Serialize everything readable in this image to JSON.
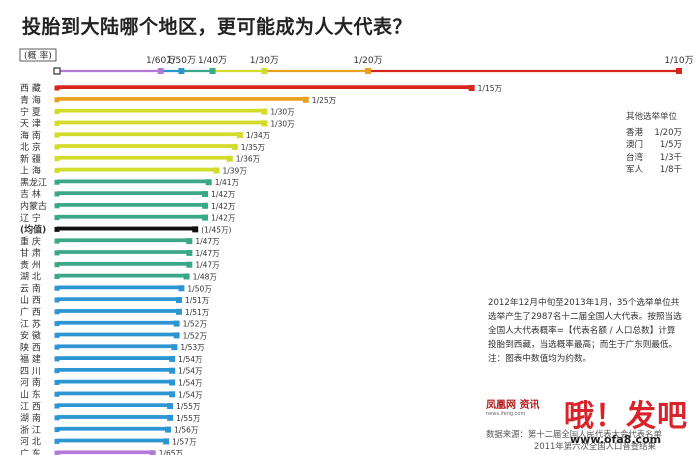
{
  "title": "投胎到大陆哪个地区，更可能成为人大代表？",
  "axis_box_label": "(概 率)",
  "side_legend": {
    "title": "其他选举单位",
    "items": [
      {
        "name": "香港",
        "value": "1/20万"
      },
      {
        "name": "澳门",
        "value": "1/5万"
      },
      {
        "name": "台湾",
        "value": "1/3千"
      },
      {
        "name": "军人",
        "value": "1/8千"
      }
    ]
  },
  "note_lines": [
    "2012年12月中旬至2013年1月，35个选举单位共",
    "选举产生了2987名十二届全国人大代表。按照当选",
    "全国人大代表概率=【代表名额 / 人口总数】计算",
    "投胎到西藏，当选概率最高；而生于广东则最低。",
    "注：图表中数值均为约数。"
  ],
  "logo": {
    "text": "凤凰网 资讯",
    "sub": "news.ifeng.com"
  },
  "source_lines": [
    "数据来源：第十二届全国人民代表大会代表名单",
    "2011年第六次全国人口普查结果"
  ],
  "watermark": {
    "text": "哦！发吧",
    "url": "www.ofa8.com"
  },
  "colors": {
    "red": "#d7261e",
    "orange": "#e9a21f",
    "yellow": "#d3db2b",
    "green": "#3aa887",
    "blue": "#2e95d3",
    "purple": "#b478d6",
    "black": "#111111"
  },
  "chart_data": {
    "type": "bar",
    "orientation": "horizontal",
    "title": "投胎到大陆哪个地区，更可能成为人大代表？",
    "xlabel": "概率",
    "x_unit": "1 / N万",
    "x_scale": "reciprocal: position ∝ 1/N",
    "xlim_denominator_wan": [
      10,
      1000
    ],
    "ticks": [
      {
        "label": "1/60万",
        "denom": 60
      },
      {
        "label": "1/50万",
        "denom": 50
      },
      {
        "label": "1/40万",
        "denom": 40
      },
      {
        "label": "1/30万",
        "denom": 30
      },
      {
        "label": "1/20万",
        "denom": 20
      },
      {
        "label": "1/10万",
        "denom": 10
      }
    ],
    "rows": [
      {
        "region": "西 藏",
        "denom": 15,
        "label": "1/15万",
        "color": "#d7261e"
      },
      {
        "region": "青 海",
        "denom": 25,
        "label": "1/25万",
        "color": "#e9a21f"
      },
      {
        "region": "宁 夏",
        "denom": 30,
        "label": "1/30万",
        "color": "#d3db2b"
      },
      {
        "region": "天 津",
        "denom": 30,
        "label": "1/30万",
        "color": "#d3db2b"
      },
      {
        "region": "海 南",
        "denom": 34,
        "label": "1/34万",
        "color": "#d3db2b"
      },
      {
        "region": "北 京",
        "denom": 35,
        "label": "1/35万",
        "color": "#d3db2b"
      },
      {
        "region": "新 疆",
        "denom": 36,
        "label": "1/36万",
        "color": "#d3db2b"
      },
      {
        "region": "上 海",
        "denom": 39,
        "label": "1/39万",
        "color": "#d3db2b"
      },
      {
        "region": "黑龙江",
        "denom": 41,
        "label": "1/41万",
        "color": "#3aa887"
      },
      {
        "region": "吉 林",
        "denom": 42,
        "label": "1/42万",
        "color": "#3aa887"
      },
      {
        "region": "内蒙古",
        "denom": 42,
        "label": "1/42万",
        "color": "#3aa887"
      },
      {
        "region": "辽 宁",
        "denom": 42,
        "label": "1/42万",
        "color": "#3aa887"
      },
      {
        "region": "(均值)",
        "denom": 45,
        "label": "(1/45万)",
        "color": "#111111",
        "is_mean": true
      },
      {
        "region": "重 庆",
        "denom": 47,
        "label": "1/47万",
        "color": "#3aa887"
      },
      {
        "region": "甘 肃",
        "denom": 47,
        "label": "1/47万",
        "color": "#3aa887"
      },
      {
        "region": "贵 州",
        "denom": 47,
        "label": "1/47万",
        "color": "#3aa887"
      },
      {
        "region": "湖 北",
        "denom": 48,
        "label": "1/48万",
        "color": "#3aa887"
      },
      {
        "region": "云 南",
        "denom": 50,
        "label": "1/50万",
        "color": "#2e95d3"
      },
      {
        "region": "山 西",
        "denom": 51,
        "label": "1/51万",
        "color": "#2e95d3"
      },
      {
        "region": "广 西",
        "denom": 51,
        "label": "1/51万",
        "color": "#2e95d3"
      },
      {
        "region": "江 苏",
        "denom": 52,
        "label": "1/52万",
        "color": "#2e95d3"
      },
      {
        "region": "安 徽",
        "denom": 52,
        "label": "1/52万",
        "color": "#2e95d3"
      },
      {
        "region": "陕 西",
        "denom": 53,
        "label": "1/53万",
        "color": "#2e95d3"
      },
      {
        "region": "福 建",
        "denom": 54,
        "label": "1/54万",
        "color": "#2e95d3"
      },
      {
        "region": "四 川",
        "denom": 54,
        "label": "1/54万",
        "color": "#2e95d3"
      },
      {
        "region": "河 南",
        "denom": 54,
        "label": "1/54万",
        "color": "#2e95d3"
      },
      {
        "region": "山 东",
        "denom": 54,
        "label": "1/54万",
        "color": "#2e95d3"
      },
      {
        "region": "江 西",
        "denom": 55,
        "label": "1/55万",
        "color": "#2e95d3"
      },
      {
        "region": "湖 南",
        "denom": 55,
        "label": "1/55万",
        "color": "#2e95d3"
      },
      {
        "region": "浙 江",
        "denom": 56,
        "label": "1/56万",
        "color": "#2e95d3"
      },
      {
        "region": "河 北",
        "denom": 57,
        "label": "1/57万",
        "color": "#2e95d3"
      },
      {
        "region": "广 东",
        "denom": 65,
        "label": "1/65万",
        "color": "#b478d6"
      }
    ]
  }
}
